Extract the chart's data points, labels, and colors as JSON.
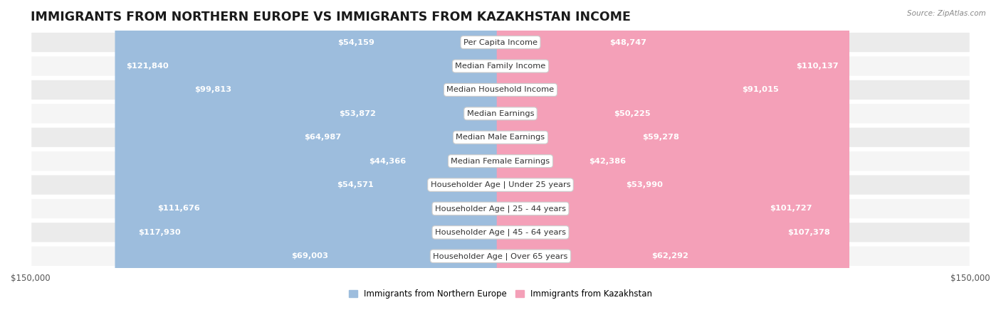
{
  "title": "IMMIGRANTS FROM NORTHERN EUROPE VS IMMIGRANTS FROM KAZAKHSTAN INCOME",
  "source": "Source: ZipAtlas.com",
  "categories": [
    "Per Capita Income",
    "Median Family Income",
    "Median Household Income",
    "Median Earnings",
    "Median Male Earnings",
    "Median Female Earnings",
    "Householder Age | Under 25 years",
    "Householder Age | 25 - 44 years",
    "Householder Age | 45 - 64 years",
    "Householder Age | Over 65 years"
  ],
  "left_values": [
    54159,
    121840,
    99813,
    53872,
    64987,
    44366,
    54571,
    111676,
    117930,
    69003
  ],
  "right_values": [
    48747,
    110137,
    91015,
    50225,
    59278,
    42386,
    53990,
    101727,
    107378,
    62292
  ],
  "left_labels": [
    "$54,159",
    "$121,840",
    "$99,813",
    "$53,872",
    "$64,987",
    "$44,366",
    "$54,571",
    "$111,676",
    "$117,930",
    "$69,003"
  ],
  "right_labels": [
    "$48,747",
    "$110,137",
    "$91,015",
    "$50,225",
    "$59,278",
    "$42,386",
    "$53,990",
    "$101,727",
    "$107,378",
    "$62,292"
  ],
  "left_color": "#9dbddd",
  "right_color": "#f4a0b8",
  "left_label_inside_color": "#ffffff",
  "right_label_inside_color": "#ffffff",
  "left_label_outside_color": "#444444",
  "right_label_outside_color": "#444444",
  "max_value": 150000,
  "legend_left": "Immigrants from Northern Europe",
  "legend_right": "Immigrants from Kazakhstan",
  "row_bg_even": "#ebebeb",
  "row_bg_odd": "#f5f5f5",
  "bar_height": 0.62,
  "title_fontsize": 12.5,
  "label_fontsize": 8.2,
  "category_fontsize": 8.2,
  "axis_label_fontsize": 8.5,
  "inside_threshold": 0.2
}
